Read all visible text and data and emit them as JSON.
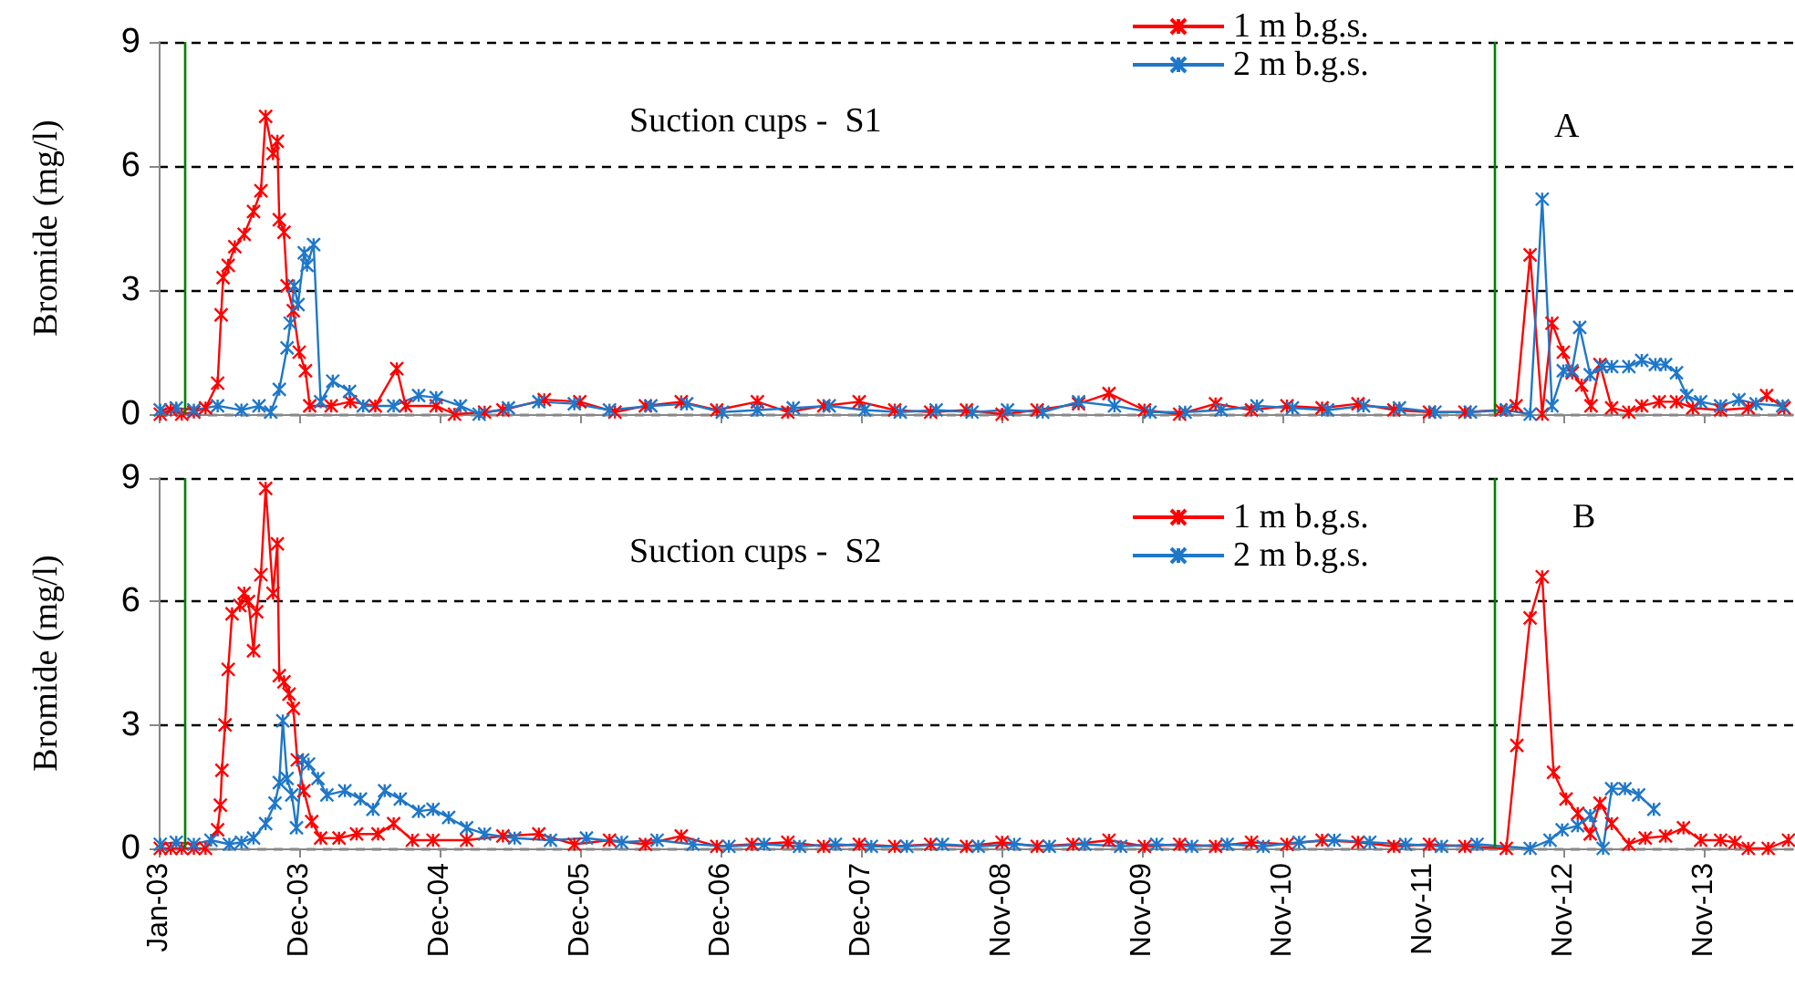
{
  "chart_data": [
    {
      "type": "line",
      "ylabel": "Bromide (mg/l)",
      "annotations": [
        "Suction cups -  S1",
        "A"
      ],
      "xlim": [
        "2003-01-01",
        "2014-06-20"
      ],
      "ylim": [
        0,
        9
      ],
      "yticks": [
        0,
        3,
        6,
        9
      ],
      "xticks": [
        {
          "value": "2003-01-01",
          "label": null
        },
        {
          "value": "2003-12-27",
          "label": null
        },
        {
          "value": "2004-12-21",
          "label": null
        },
        {
          "value": "2005-12-16",
          "label": null
        },
        {
          "value": "2006-12-11",
          "label": null
        },
        {
          "value": "2007-12-06",
          "label": null
        },
        {
          "value": "2008-11-30",
          "label": null
        },
        {
          "value": "2009-11-25",
          "label": null
        },
        {
          "value": "2010-11-20",
          "label": null
        },
        {
          "value": "2011-11-15",
          "label": null
        },
        {
          "value": "2012-11-09",
          "label": null
        },
        {
          "value": "2013-11-04",
          "label": null
        }
      ],
      "tick_labels": "y",
      "grid": "y",
      "legend": "top",
      "marker": "cross",
      "line_style": "solid",
      "ref_lines": [
        {
          "axis": "x",
          "value": "2003-03-07",
          "color": "#008000"
        },
        {
          "axis": "x",
          "value": "2012-05-17",
          "color": "#008000"
        }
      ],
      "series": [
        {
          "name": "1 m b.g.s.",
          "color": "#ff0000",
          "x": [
            "2003-01-05",
            "2003-02-01",
            "2003-03-01",
            "2003-04-01",
            "2003-05-01",
            "2003-06-01",
            "2003-06-10",
            "2003-06-15",
            "2003-06-28",
            "2003-07-15",
            "2003-08-08",
            "2003-09-01",
            "2003-09-20",
            "2003-10-02",
            "2003-10-21",
            "2003-11-01",
            "2003-11-06",
            "2003-11-18",
            "2003-11-26",
            "2003-12-12",
            "2003-12-27",
            "2004-01-12",
            "2004-01-23",
            "2004-03-18",
            "2004-05-06",
            "2004-07-09",
            "2004-09-02",
            "2004-09-25",
            "2004-12-12",
            "2005-01-28",
            "2005-04-15",
            "2005-06-01",
            "2005-09-15",
            "2005-12-15",
            "2006-03-15",
            "2006-06-01",
            "2006-09-01",
            "2006-12-01",
            "2007-03-15",
            "2007-06-01",
            "2007-09-01",
            "2007-12-01",
            "2008-03-01",
            "2008-06-01",
            "2008-09-01",
            "2008-12-01",
            "2009-03-01",
            "2009-06-15",
            "2009-09-01",
            "2009-12-01",
            "2010-03-01",
            "2010-06-01",
            "2010-09-01",
            "2010-12-01",
            "2011-03-01",
            "2011-06-01",
            "2011-09-01",
            "2011-12-01",
            "2012-03-01",
            "2012-06-01",
            "2012-07-10",
            "2012-08-15",
            "2012-09-15",
            "2012-10-10",
            "2012-11-08",
            "2012-12-01",
            "2012-12-25",
            "2013-01-18",
            "2013-02-10",
            "2013-03-12",
            "2013-04-25",
            "2013-05-28",
            "2013-07-12",
            "2013-08-25",
            "2013-10-06",
            "2013-12-16",
            "2014-02-25",
            "2014-04-13",
            "2014-05-28"
          ],
          "values": [
            0,
            0.1,
            0,
            0.05,
            0.15,
            0.75,
            2.4,
            3.3,
            3.6,
            4.05,
            4.35,
            4.9,
            5.4,
            7.2,
            6.3,
            6.6,
            4.7,
            4.4,
            3.1,
            2.5,
            1.5,
            1.05,
            0.2,
            0.2,
            0.3,
            0.2,
            1.1,
            0.2,
            0.2,
            0,
            0.05,
            0.1,
            0.35,
            0.3,
            0.05,
            0.2,
            0.3,
            0.1,
            0.3,
            0.05,
            0.2,
            0.3,
            0.1,
            0.05,
            0.1,
            0,
            0.1,
            0.25,
            0.5,
            0.1,
            0,
            0.25,
            0.1,
            0.2,
            0.15,
            0.25,
            0.1,
            0.05,
            0.05,
            0.1,
            0.2,
            3.85,
            0,
            2.2,
            1.5,
            1,
            0.7,
            0.2,
            1.2,
            0.15,
            0.05,
            0.2,
            0.3,
            0.3,
            0.15,
            0.1,
            0.15,
            0.45,
            0.15
          ]
        },
        {
          "name": "2 m b.g.s.",
          "color": "#1f77c8",
          "x": [
            "2003-01-05",
            "2003-02-15",
            "2003-04-01",
            "2003-06-01",
            "2003-08-01",
            "2003-09-15",
            "2003-10-15",
            "2003-11-06",
            "2003-11-26",
            "2003-12-04",
            "2003-12-14",
            "2003-12-24",
            "2004-01-09",
            "2004-01-16",
            "2004-02-02",
            "2004-02-20",
            "2004-03-22",
            "2004-05-04",
            "2004-06-08",
            "2004-08-25",
            "2004-10-28",
            "2004-12-12",
            "2005-02-12",
            "2005-04-01",
            "2005-06-15",
            "2005-09-01",
            "2005-12-01",
            "2006-03-01",
            "2006-06-15",
            "2006-09-15",
            "2006-12-15",
            "2007-03-15",
            "2007-06-15",
            "2007-09-15",
            "2007-12-15",
            "2008-03-15",
            "2008-06-15",
            "2008-09-15",
            "2008-12-15",
            "2009-03-15",
            "2009-06-15",
            "2009-09-15",
            "2009-12-15",
            "2010-03-15",
            "2010-06-15",
            "2010-09-15",
            "2010-12-15",
            "2011-03-15",
            "2011-06-15",
            "2011-09-15",
            "2011-12-15",
            "2012-03-15",
            "2012-06-15",
            "2012-08-15",
            "2012-09-15",
            "2012-10-10",
            "2012-11-08",
            "2012-11-30",
            "2012-12-20",
            "2013-01-16",
            "2013-02-14",
            "2013-03-12",
            "2013-04-25",
            "2013-05-28",
            "2013-07-02",
            "2013-07-28",
            "2013-08-25",
            "2013-09-20",
            "2013-10-26",
            "2013-12-16",
            "2014-02-01",
            "2014-03-17",
            "2014-05-24"
          ],
          "values": [
            0.1,
            0.15,
            0.1,
            0.2,
            0.1,
            0.2,
            0.05,
            0.6,
            1.6,
            2.2,
            3.1,
            2.65,
            3.9,
            3.6,
            4.1,
            0.3,
            0.8,
            0.55,
            0.2,
            0.2,
            0.45,
            0.4,
            0.2,
            0,
            0.15,
            0.3,
            0.25,
            0.1,
            0.2,
            0.25,
            0.05,
            0.1,
            0.15,
            0.2,
            0.1,
            0.05,
            0.1,
            0.05,
            0.1,
            0.05,
            0.3,
            0.2,
            0.05,
            0.05,
            0.1,
            0.2,
            0.15,
            0.1,
            0.2,
            0.15,
            0.05,
            0.05,
            0.1,
            0,
            5.2,
            0.2,
            1.05,
            1.05,
            2.1,
            0.95,
            1.15,
            1.15,
            1.15,
            1.3,
            1.2,
            1.2,
            1,
            0.45,
            0.3,
            0.2,
            0.35,
            0.25,
            0.2
          ]
        }
      ]
    },
    {
      "type": "line",
      "ylabel": "Bromide (mg/l)",
      "annotations": [
        "Suction cups -  S2",
        "B"
      ],
      "xlim": [
        "2003-01-01",
        "2014-06-20"
      ],
      "ylim": [
        0,
        9
      ],
      "yticks": [
        0,
        3,
        6,
        9
      ],
      "xticks": [
        {
          "value": "2003-01-01",
          "label": "Jan-03"
        },
        {
          "value": "2003-12-27",
          "label": "Dec-03"
        },
        {
          "value": "2004-12-21",
          "label": "Dec-04"
        },
        {
          "value": "2005-12-16",
          "label": "Dec-05"
        },
        {
          "value": "2006-12-11",
          "label": "Dec-06"
        },
        {
          "value": "2007-12-06",
          "label": "Dec-07"
        },
        {
          "value": "2008-11-30",
          "label": "Nov-08"
        },
        {
          "value": "2009-11-25",
          "label": "Nov-09"
        },
        {
          "value": "2010-11-20",
          "label": "Nov-10"
        },
        {
          "value": "2011-11-15",
          "label": "Nov-11"
        },
        {
          "value": "2012-11-09",
          "label": "Nov-12"
        },
        {
          "value": "2013-11-04",
          "label": "Nov-13"
        }
      ],
      "grid": "y",
      "legend": "top",
      "marker": "cross",
      "line_style": "solid",
      "ref_lines": [
        {
          "axis": "x",
          "value": "2003-03-07",
          "color": "#008000"
        },
        {
          "axis": "x",
          "value": "2012-05-17",
          "color": "#008000"
        }
      ],
      "series": [
        {
          "name": "1 m b.g.s.",
          "color": "#ff0000",
          "x": [
            "2003-01-05",
            "2003-02-01",
            "2003-03-01",
            "2003-04-01",
            "2003-05-01",
            "2003-06-01",
            "2003-06-08",
            "2003-06-12",
            "2003-06-20",
            "2003-06-28",
            "2003-07-08",
            "2003-07-28",
            "2003-08-08",
            "2003-08-19",
            "2003-09-01",
            "2003-09-09",
            "2003-09-20",
            "2003-10-02",
            "2003-10-21",
            "2003-11-01",
            "2003-11-06",
            "2003-11-18",
            "2003-12-01",
            "2003-12-12",
            "2003-12-22",
            "2004-01-08",
            "2004-01-28",
            "2004-02-20",
            "2004-04-07",
            "2004-05-22",
            "2004-07-16",
            "2004-08-25",
            "2004-10-12",
            "2004-12-04",
            "2005-02-28",
            "2005-06-01",
            "2005-09-01",
            "2005-12-01",
            "2006-03-01",
            "2006-06-01",
            "2006-09-01",
            "2006-12-01",
            "2007-03-01",
            "2007-06-01",
            "2007-09-01",
            "2007-12-01",
            "2008-03-01",
            "2008-06-01",
            "2008-09-01",
            "2008-12-01",
            "2009-03-01",
            "2009-06-01",
            "2009-09-01",
            "2009-12-01",
            "2010-03-01",
            "2010-06-01",
            "2010-09-01",
            "2010-12-01",
            "2011-03-01",
            "2011-06-01",
            "2011-09-01",
            "2011-12-01",
            "2012-03-01",
            "2012-06-15",
            "2012-07-12",
            "2012-08-15",
            "2012-09-15",
            "2012-10-14",
            "2012-11-15",
            "2012-12-15",
            "2013-01-16",
            "2013-02-10",
            "2013-03-12",
            "2013-04-25",
            "2013-06-06",
            "2013-07-28",
            "2013-09-12",
            "2013-10-26",
            "2013-12-16",
            "2014-01-22",
            "2014-02-25",
            "2014-04-17",
            "2014-06-08"
          ],
          "values": [
            0,
            0,
            0,
            0,
            0,
            0.45,
            1.05,
            1.9,
            3,
            4.35,
            5.7,
            5.9,
            6.2,
            6,
            4.8,
            5.75,
            6.65,
            8.75,
            6.2,
            7.4,
            4.2,
            4.05,
            3.75,
            3.4,
            2.15,
            1.4,
            0.65,
            0.25,
            0.25,
            0.35,
            0.35,
            0.6,
            0.2,
            0.2,
            0.2,
            0.3,
            0.35,
            0.1,
            0.2,
            0.1,
            0.3,
            0.05,
            0.1,
            0.15,
            0.05,
            0.1,
            0.05,
            0.1,
            0.05,
            0.15,
            0.05,
            0.1,
            0.2,
            0.05,
            0.1,
            0.05,
            0.15,
            0.1,
            0.2,
            0.15,
            0.05,
            0.1,
            0.05,
            0,
            2.5,
            5.6,
            6.6,
            1.85,
            1.2,
            0.85,
            0.35,
            1.1,
            0.6,
            0.1,
            0.25,
            0.3,
            0.5,
            0.2,
            0.2,
            0.15,
            0,
            0,
            0.2
          ]
        },
        {
          "name": "2 m b.g.s.",
          "color": "#1f77c8",
          "x": [
            "2003-01-05",
            "2003-02-15",
            "2003-04-01",
            "2003-05-15",
            "2003-07-01",
            "2003-08-01",
            "2003-09-01",
            "2003-10-02",
            "2003-10-26",
            "2003-11-06",
            "2003-11-15",
            "2003-11-26",
            "2003-12-08",
            "2003-12-20",
            "2004-01-05",
            "2004-01-20",
            "2004-02-13",
            "2004-03-07",
            "2004-04-22",
            "2004-06-01",
            "2004-07-03",
            "2004-08-02",
            "2004-09-11",
            "2004-10-28",
            "2004-12-04",
            "2005-01-13",
            "2005-02-28",
            "2005-04-15",
            "2005-07-01",
            "2005-10-01",
            "2006-01-01",
            "2006-04-01",
            "2006-07-01",
            "2006-10-01",
            "2007-01-01",
            "2007-04-01",
            "2007-07-01",
            "2007-10-01",
            "2008-01-01",
            "2008-04-01",
            "2008-07-01",
            "2008-10-01",
            "2009-01-01",
            "2009-04-01",
            "2009-07-01",
            "2009-10-01",
            "2010-01-01",
            "2010-04-01",
            "2010-07-01",
            "2010-10-01",
            "2011-01-01",
            "2011-04-01",
            "2011-07-01",
            "2011-10-01",
            "2012-01-01",
            "2012-04-01",
            "2012-08-15",
            "2012-10-05",
            "2012-11-05",
            "2012-12-15",
            "2013-01-16",
            "2013-02-18",
            "2013-03-12",
            "2013-04-15",
            "2013-05-20",
            "2013-06-28"
          ],
          "values": [
            0.1,
            0.15,
            0.1,
            0.2,
            0.1,
            0.15,
            0.25,
            0.6,
            1.1,
            1.6,
            3.1,
            1.7,
            1.3,
            0.5,
            2.15,
            2.05,
            1.7,
            1.3,
            1.4,
            1.2,
            0.95,
            1.4,
            1.2,
            0.9,
            0.95,
            0.75,
            0.5,
            0.35,
            0.25,
            0.2,
            0.25,
            0.15,
            0.2,
            0.1,
            0.05,
            0.1,
            0.05,
            0.1,
            0.05,
            0.05,
            0.1,
            0.05,
            0.1,
            0.05,
            0.1,
            0.05,
            0.1,
            0.05,
            0.1,
            0.05,
            0.15,
            0.2,
            0.15,
            0.1,
            0.05,
            0.1,
            0,
            0.2,
            0.45,
            0.55,
            0.8,
            0,
            1.45,
            1.45,
            1.3,
            0.95
          ]
        }
      ]
    }
  ]
}
